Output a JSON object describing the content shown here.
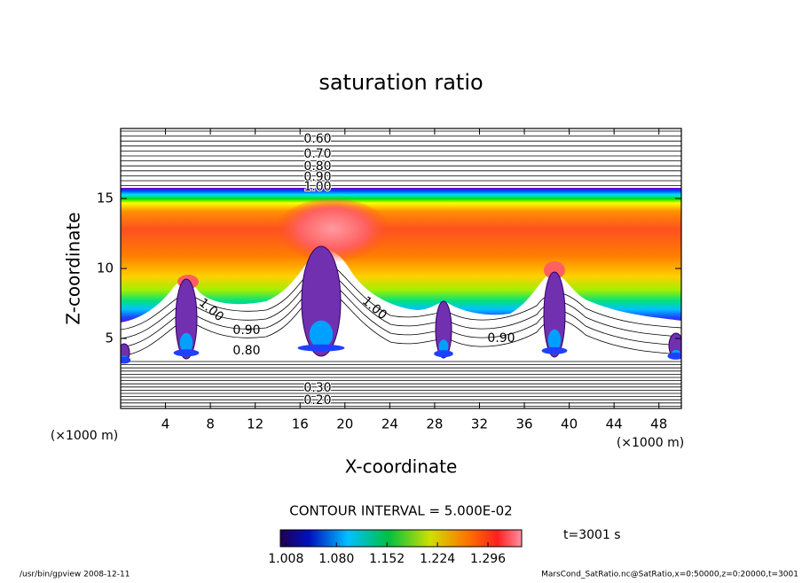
{
  "chart_data": {
    "type": "contour",
    "title": "saturation ratio",
    "x_label": "X-coordinate",
    "y_label": "Z-coordinate",
    "x_unit": "(×1000 m)",
    "y_unit": "(×1000 m)",
    "xlim": [
      0,
      50
    ],
    "xticks": [
      4,
      8,
      12,
      16,
      20,
      24,
      28,
      32,
      36,
      40,
      44,
      48
    ],
    "ylim": [
      0,
      20
    ],
    "yticks": [
      5,
      10,
      15
    ],
    "contour_labels": [
      {
        "value": 0.6,
        "label": "0.60"
      },
      {
        "value": 0.7,
        "label": "0.70"
      },
      {
        "value": 0.8,
        "label": "0.80"
      },
      {
        "value": 0.9,
        "label": "0.90"
      },
      {
        "value": 1.0,
        "label": "1.00"
      },
      {
        "value": 0.3,
        "label": "0.30"
      },
      {
        "value": 0.2,
        "label": "0.20"
      },
      {
        "value": 1.0,
        "label": "1.00"
      },
      {
        "value": 0.9,
        "label": "0.90"
      },
      {
        "value": 0.8,
        "label": "0.80"
      },
      {
        "value": 1.0,
        "label": "1.00"
      },
      {
        "value": 0.9,
        "label": "0.90"
      }
    ],
    "contour_interval_text": "CONTOUR INTERVAL = 5.000E-02",
    "colorbar": {
      "lim": [
        1.0,
        1.344
      ],
      "ticks": [
        1.008,
        {
          "value": 1.08,
          "label": "1.080"
        },
        1.152,
        1.224,
        1.296
      ]
    },
    "time_label": "t=3001 s",
    "footer_left": "/usr/bin/gpview   2008-12-11",
    "footer_right": "MarsCond_SatRatio.nc@SatRatio,x=0:50000,z=0:20000,t=3001"
  }
}
